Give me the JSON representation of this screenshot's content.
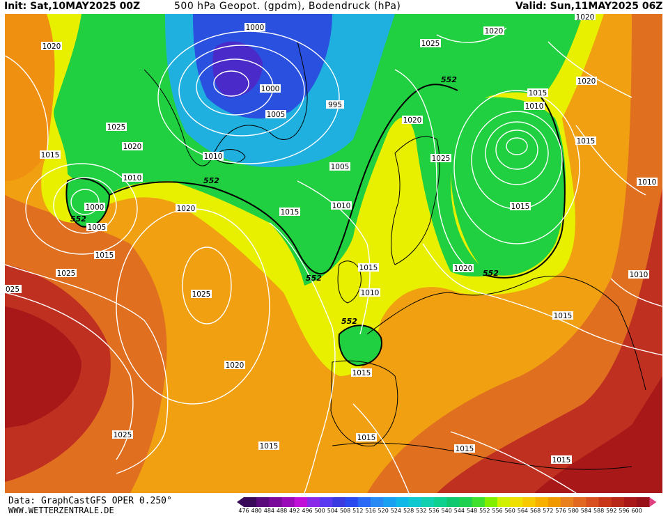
{
  "header": {
    "init": "Init: Sat,10MAY2025 00Z",
    "title": "500 hPa Geopot. (gpdm), Bodendruck (hPa)",
    "valid": "Valid: Sun,11MAY2025 06Z"
  },
  "footer": {
    "data": "Data: GraphCastGFS OPER 0.250°",
    "site": "WWW.WETTERZENTRALE.DE"
  },
  "colorbar": {
    "ticks": [
      "476",
      "480",
      "484",
      "488",
      "492",
      "496",
      "500",
      "504",
      "508",
      "512",
      "516",
      "520",
      "524",
      "528",
      "532",
      "536",
      "540",
      "544",
      "548",
      "552",
      "556",
      "560",
      "564",
      "568",
      "572",
      "576",
      "580",
      "584",
      "588",
      "592",
      "596",
      "600"
    ],
    "colors": [
      "#3a0a5a",
      "#5a0a7a",
      "#7a0a9a",
      "#9a0ab8",
      "#c010d8",
      "#8a2ae8",
      "#5a3af0",
      "#3a3ae0",
      "#2a4af0",
      "#2a6af4",
      "#2a8af4",
      "#1aa0f0",
      "#10b8e8",
      "#10c8d0",
      "#10d0b0",
      "#10d090",
      "#10c870",
      "#20d050",
      "#40e030",
      "#80f000",
      "#d0f000",
      "#f0e000",
      "#f8c800",
      "#f8b000",
      "#f09800",
      "#e88020",
      "#e06820",
      "#d85020",
      "#c83818",
      "#b82818",
      "#a81818",
      "#981018",
      "#e04080"
    ]
  },
  "map": {
    "geopotential_contour_label": "552",
    "isobar_labels": [
      "1020",
      "1025",
      "1015",
      "1020",
      "1010",
      "1000",
      "1005",
      "1015",
      "1020",
      "1025",
      "1000",
      "1005",
      "995",
      "1000",
      "1010",
      "1005",
      "1015",
      "1010",
      "1025",
      "1020",
      "1020",
      "1015",
      "1010",
      "1015",
      "1020",
      "1025",
      "1015",
      "1010",
      "1015",
      "1020",
      "1025",
      "1010",
      "1015",
      "1015",
      "1020",
      "1015",
      "1015",
      "1025",
      "1015",
      "1015",
      "1020",
      "1010",
      "025"
    ],
    "colors": {
      "yellow": "#e8f000",
      "orange": "#f0a010",
      "deep_orange": "#e07020",
      "red": "#c03020",
      "dark_red": "#a81818",
      "green": "#20d040",
      "cyan": "#20b0e0",
      "blue": "#2a50e0",
      "purple": "#4a2ac8",
      "isobar": "#ffffff",
      "coast": "#000000"
    }
  }
}
